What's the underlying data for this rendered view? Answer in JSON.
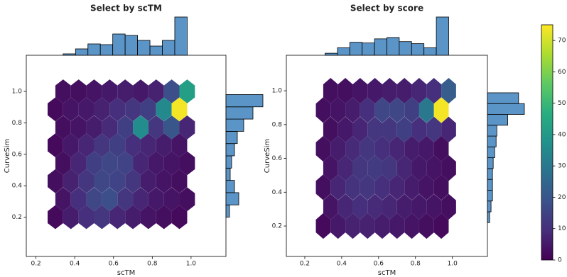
{
  "chart_data": [
    {
      "type": "hexbin",
      "title": "Select by scTM",
      "xlabel": "scTM",
      "ylabel": "CurveSim",
      "xlim": [
        0.15,
        1.18
      ],
      "ylim": [
        -0.05,
        1.23
      ],
      "xticks": [
        0.2,
        0.4,
        0.6,
        0.8,
        {
          "value": 1,
          "label": "1.0"
        }
      ],
      "yticks": [
        0.2,
        0.4,
        0.6,
        0.8,
        {
          "value": 1,
          "label": "1.0"
        }
      ],
      "hex_rows": [
        1.0,
        0.886,
        0.771,
        0.657,
        0.543,
        0.429,
        0.314,
        0.2
      ],
      "hex_x_even": [
        0.34,
        0.42,
        0.5,
        0.58,
        0.66,
        0.74,
        0.82,
        0.9,
        0.98
      ],
      "hex_x_odd": [
        0.3,
        0.38,
        0.46,
        0.54,
        0.62,
        0.7,
        0.78,
        0.86,
        0.94
      ],
      "counts": [
        [
          3,
          3,
          4,
          5,
          6,
          5,
          7,
          18,
          42
        ],
        [
          2,
          4,
          5,
          7,
          10,
          12,
          14,
          35,
          74
        ],
        [
          3,
          4,
          6,
          9,
          14,
          36,
          12,
          20,
          8
        ],
        [
          2,
          5,
          8,
          12,
          14,
          10,
          8,
          6,
          4
        ],
        [
          3,
          8,
          14,
          16,
          15,
          8,
          5,
          4,
          3
        ],
        [
          3,
          7,
          12,
          16,
          15,
          12,
          6,
          4,
          3
        ],
        [
          4,
          10,
          16,
          18,
          12,
          8,
          5,
          4,
          3
        ],
        [
          2,
          6,
          10,
          12,
          8,
          6,
          4,
          3,
          2
        ]
      ],
      "x_hist": {
        "color": "#5b94c6",
        "bins": [
          0.34,
          0.404,
          0.468,
          0.532,
          0.596,
          0.66,
          0.724,
          0.788,
          0.852,
          0.916,
          0.98
        ],
        "counts": [
          2,
          9,
          16,
          15,
          30,
          28,
          21,
          13,
          21,
          54
        ]
      },
      "y_hist": {
        "color": "#5b94c6",
        "bins": [
          0.2,
          0.278,
          0.356,
          0.434,
          0.512,
          0.59,
          0.668,
          0.746,
          0.824,
          0.902,
          0.98
        ],
        "counts": [
          5,
          18,
          12,
          6,
          8,
          12,
          16,
          25,
          38,
          52
        ]
      }
    },
    {
      "type": "hexbin",
      "title": "Select by score",
      "xlabel": "scTM",
      "ylabel": "CurveSim",
      "xlim": [
        0.1,
        1.19
      ],
      "ylim": [
        0.02,
        1.21
      ],
      "xticks": [
        0.2,
        0.4,
        0.6,
        0.8,
        {
          "value": 1,
          "label": "1.0"
        }
      ],
      "yticks": [
        0.2,
        0.4,
        0.6,
        0.8,
        {
          "value": 1,
          "label": "1.0"
        }
      ],
      "hex_rows": [
        1.0,
        0.886,
        0.771,
        0.657,
        0.543,
        0.429,
        0.314,
        0.2
      ],
      "hex_x_even": [
        0.34,
        0.42,
        0.5,
        0.58,
        0.66,
        0.74,
        0.82,
        0.9,
        0.98
      ],
      "hex_x_odd": [
        0.3,
        0.38,
        0.46,
        0.54,
        0.62,
        0.7,
        0.78,
        0.86,
        0.94
      ],
      "counts": [
        [
          3,
          3,
          4,
          5,
          6,
          6,
          8,
          10,
          22
        ],
        [
          3,
          4,
          6,
          10,
          16,
          16,
          14,
          30,
          74
        ],
        [
          3,
          5,
          8,
          12,
          12,
          14,
          10,
          12,
          8
        ],
        [
          3,
          6,
          9,
          12,
          10,
          8,
          6,
          5,
          3
        ],
        [
          4,
          8,
          12,
          13,
          12,
          8,
          5,
          4,
          3
        ],
        [
          3,
          8,
          11,
          12,
          10,
          8,
          6,
          4,
          3
        ],
        [
          4,
          8,
          10,
          9,
          8,
          6,
          5,
          4,
          3
        ],
        [
          2,
          5,
          7,
          7,
          6,
          5,
          4,
          3,
          2
        ]
      ],
      "x_hist": {
        "color": "#5b94c6",
        "bins": [
          0.31,
          0.377,
          0.444,
          0.511,
          0.578,
          0.645,
          0.712,
          0.779,
          0.846,
          0.913,
          0.98
        ],
        "counts": [
          3,
          11,
          19,
          18,
          24,
          26,
          20,
          17,
          11,
          56
        ]
      },
      "y_hist": {
        "color": "#5b94c6",
        "bins": [
          0.22,
          0.284,
          0.348,
          0.412,
          0.476,
          0.54,
          0.604,
          0.668,
          0.732,
          0.796,
          0.86,
          0.924,
          0.988
        ],
        "counts": [
          3,
          5,
          7,
          7,
          7,
          8,
          10,
          12,
          13,
          28,
          51,
          43
        ]
      }
    },
    {
      "type": "colorbar",
      "colormap": "viridis",
      "clim": [
        0,
        75
      ],
      "ticks": [
        0,
        10,
        20,
        30,
        40,
        50,
        60,
        70
      ]
    }
  ]
}
